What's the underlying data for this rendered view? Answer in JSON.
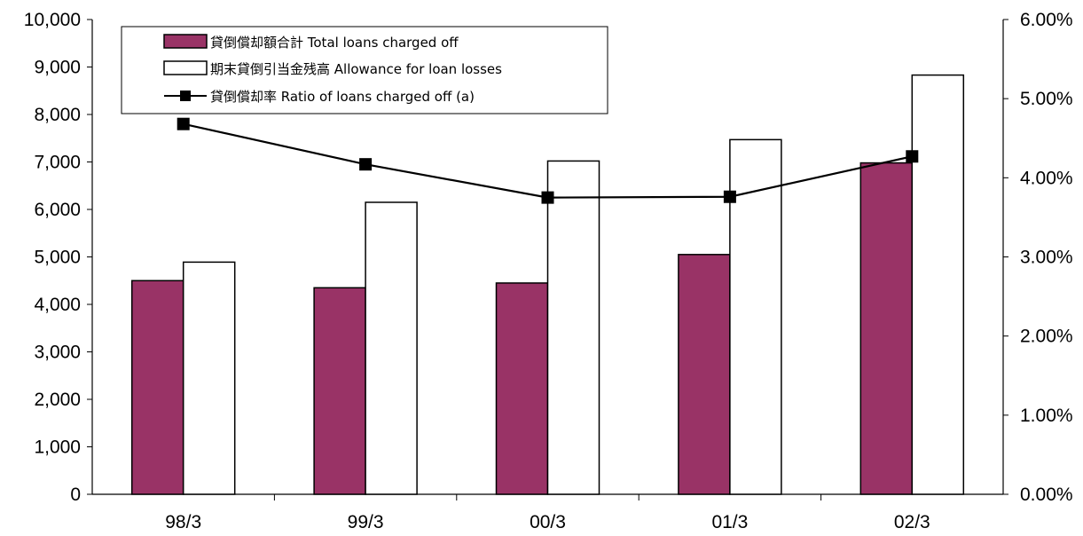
{
  "chart_data": {
    "type": "bar",
    "categories": [
      "98/3",
      "99/3",
      "00/3",
      "01/3",
      "02/3"
    ],
    "series": [
      {
        "name": "貸倒償却額合計 Total loans charged off",
        "kind": "bar",
        "axis": "left",
        "color": "#993366",
        "values": [
          4500,
          4350,
          4450,
          5050,
          6980
        ]
      },
      {
        "name": "期末貸倒引当金残高 Allowance for loan losses",
        "kind": "bar",
        "axis": "left",
        "color": "#ffffff",
        "values": [
          4890,
          6150,
          7020,
          7470,
          8830
        ]
      },
      {
        "name": "貸倒償却率 Ratio of loans charged off (a)",
        "kind": "line",
        "axis": "right",
        "color": "#000000",
        "marker": "square",
        "values": [
          4.68,
          4.17,
          3.75,
          3.76,
          4.27
        ]
      }
    ],
    "y_left": {
      "min": 0,
      "max": 10000,
      "ticks": [
        0,
        1000,
        2000,
        3000,
        4000,
        5000,
        6000,
        7000,
        8000,
        9000,
        10000
      ],
      "tick_labels": [
        "0",
        "1,000",
        "2,000",
        "3,000",
        "4,000",
        "5,000",
        "6,000",
        "7,000",
        "8,000",
        "9,000",
        "10,000"
      ]
    },
    "y_right": {
      "min": 0,
      "max": 6,
      "ticks": [
        0,
        1,
        2,
        3,
        4,
        5,
        6
      ],
      "tick_labels": [
        "0.00%",
        "1.00%",
        "2.00%",
        "3.00%",
        "4.00%",
        "5.00%",
        "6.00%"
      ]
    },
    "grid": false,
    "legend_position": "top-left"
  }
}
